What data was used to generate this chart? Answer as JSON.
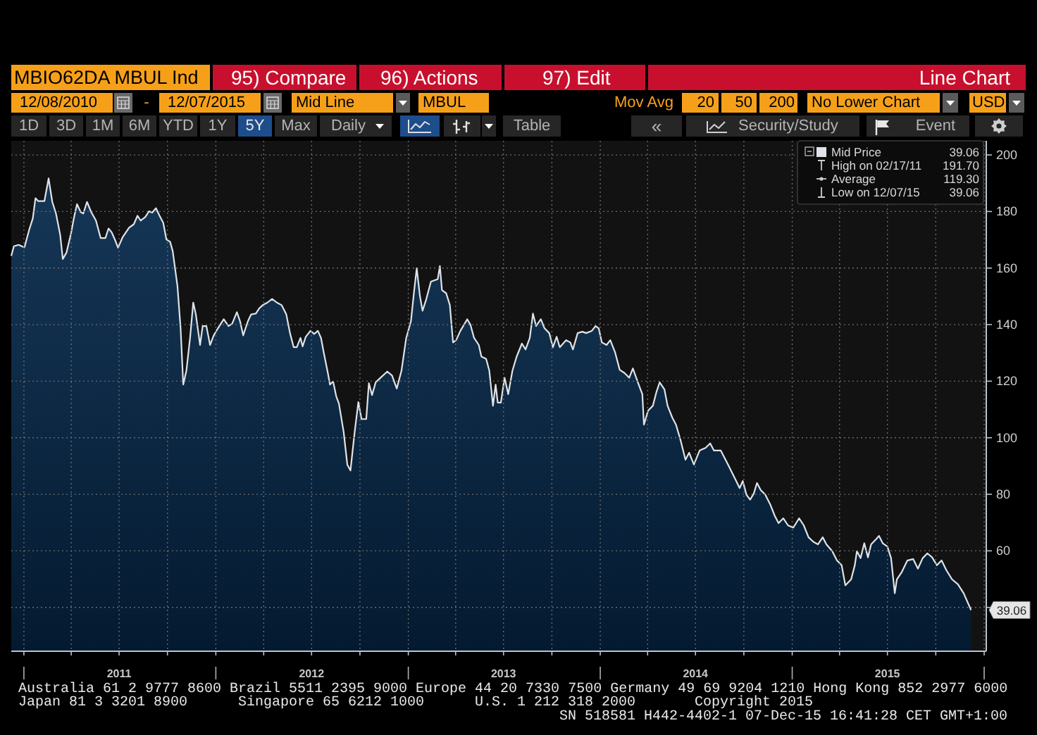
{
  "chart_data": {
    "type": "area",
    "x": [
      "2010-12-08",
      "2010-12-13",
      "2010-12-22",
      "2011-01-02",
      "2011-01-11",
      "2011-01-18",
      "2011-01-23",
      "2011-01-28",
      "2011-02-09",
      "2011-02-17",
      "2011-02-24",
      "2011-03-03",
      "2011-03-11",
      "2011-03-16",
      "2011-03-23",
      "2011-04-01",
      "2011-04-06",
      "2011-04-12",
      "2011-04-19",
      "2011-04-24",
      "2011-05-01",
      "2011-05-09",
      "2011-05-18",
      "2011-05-27",
      "2011-06-05",
      "2011-06-11",
      "2011-06-17",
      "2011-06-23",
      "2011-06-29",
      "2011-07-08",
      "2011-07-20",
      "2011-07-29",
      "2011-08-05",
      "2011-08-11",
      "2011-08-20",
      "2011-08-27",
      "2011-09-02",
      "2011-09-09",
      "2011-09-16",
      "2011-09-23",
      "2011-09-29",
      "2011-10-06",
      "2011-10-11",
      "2011-10-20",
      "2011-10-26",
      "2011-10-31",
      "2011-11-06",
      "2011-11-13",
      "2011-11-19",
      "2011-11-24",
      "2011-12-02",
      "2011-12-07",
      "2011-12-14",
      "2011-12-21",
      "2011-12-28",
      "2012-01-05",
      "2012-01-16",
      "2012-01-25",
      "2012-02-01",
      "2012-02-10",
      "2012-02-16",
      "2012-02-22",
      "2012-03-02",
      "2012-03-08",
      "2012-03-17",
      "2012-03-23",
      "2012-03-30",
      "2012-04-08",
      "2012-04-17",
      "2012-04-26",
      "2012-05-05",
      "2012-05-14",
      "2012-05-21",
      "2012-05-28",
      "2012-06-03",
      "2012-06-10",
      "2012-06-14",
      "2012-06-20",
      "2012-06-29",
      "2012-07-06",
      "2012-07-13",
      "2012-07-19",
      "2012-07-24",
      "2012-08-01",
      "2012-08-05",
      "2012-08-11",
      "2012-08-17",
      "2012-08-22",
      "2012-08-31",
      "2012-09-07",
      "2012-09-13",
      "2012-09-21",
      "2012-09-28",
      "2012-10-04",
      "2012-10-13",
      "2012-10-18",
      "2012-10-24",
      "2012-10-31",
      "2012-11-09",
      "2012-11-22",
      "2012-12-01",
      "2012-12-10",
      "2012-12-19",
      "2012-12-28",
      "2013-01-06",
      "2013-01-12",
      "2013-01-17",
      "2013-01-23",
      "2013-01-28",
      "2013-02-04",
      "2013-02-13",
      "2013-02-26",
      "2013-03-02",
      "2013-03-06",
      "2013-03-14",
      "2013-03-21",
      "2013-03-27",
      "2013-04-02",
      "2013-04-10",
      "2013-04-23",
      "2013-04-29",
      "2013-05-06",
      "2013-05-15",
      "2013-05-20",
      "2013-05-29",
      "2013-06-04",
      "2013-06-11",
      "2013-06-16",
      "2013-06-20",
      "2013-06-26",
      "2013-07-03",
      "2013-07-10",
      "2013-07-18",
      "2013-07-26",
      "2013-08-05",
      "2013-08-12",
      "2013-08-20",
      "2013-08-26",
      "2013-09-01",
      "2013-09-10",
      "2013-09-17",
      "2013-09-26",
      "2013-10-03",
      "2013-10-10",
      "2013-10-16",
      "2013-10-28",
      "2013-11-05",
      "2013-11-10",
      "2013-11-19",
      "2013-11-28",
      "2013-12-05",
      "2013-12-16",
      "2013-12-23",
      "2013-12-29",
      "2014-01-04",
      "2014-01-13",
      "2014-01-20",
      "2014-01-29",
      "2014-02-07",
      "2014-02-16",
      "2014-02-25",
      "2014-03-04",
      "2014-03-15",
      "2014-03-22",
      "2014-03-25",
      "2014-04-02",
      "2014-04-11",
      "2014-04-18",
      "2014-04-24",
      "2014-05-03",
      "2014-05-09",
      "2014-05-18",
      "2014-05-25",
      "2014-06-03",
      "2014-06-12",
      "2014-06-19",
      "2014-06-28",
      "2014-07-09",
      "2014-07-20",
      "2014-07-29",
      "2014-08-05",
      "2014-08-18",
      "2014-09-01",
      "2014-09-14",
      "2014-09-23",
      "2014-09-29",
      "2014-10-06",
      "2014-10-13",
      "2014-10-20",
      "2014-10-26",
      "2014-11-02",
      "2014-11-11",
      "2014-11-20",
      "2014-11-29",
      "2014-12-06",
      "2014-12-15",
      "2014-12-24",
      "2015-01-03",
      "2015-01-14",
      "2015-01-23",
      "2015-02-01",
      "2015-02-10",
      "2015-02-19",
      "2015-02-28",
      "2015-03-07",
      "2015-03-18",
      "2015-03-27",
      "2015-04-05",
      "2015-04-12",
      "2015-04-23",
      "2015-04-30",
      "2015-05-04",
      "2015-05-11",
      "2015-05-18",
      "2015-05-25",
      "2015-05-31",
      "2015-06-09",
      "2015-06-15",
      "2015-06-22",
      "2015-07-01",
      "2015-07-08",
      "2015-07-15",
      "2015-07-19",
      "2015-07-28",
      "2015-08-08",
      "2015-08-19",
      "2015-08-28",
      "2015-09-06",
      "2015-09-15",
      "2015-09-24",
      "2015-10-03",
      "2015-10-12",
      "2015-10-21",
      "2015-11-01",
      "2015-11-12",
      "2015-11-23",
      "2015-12-07"
    ],
    "series": [
      {
        "name": "Mid Price",
        "color": "#dfe3e8",
        "values": [
          164.3,
          167.7,
          168.2,
          167.3,
          173.5,
          177.6,
          184.7,
          183.7,
          183.7,
          191.7,
          183.4,
          179.3,
          171.8,
          163.2,
          165.5,
          172.6,
          177.6,
          182.6,
          179.8,
          179.3,
          183.4,
          179.8,
          176.8,
          170.6,
          170.6,
          174,
          172.6,
          170.1,
          167.2,
          171,
          174.3,
          175.5,
          178.5,
          176.8,
          178.1,
          180.1,
          179.6,
          181.2,
          178.5,
          176,
          170.1,
          169.3,
          166,
          153.6,
          138.7,
          118.8,
          123.7,
          135.3,
          147.8,
          143.6,
          132.8,
          139.5,
          139.5,
          132.8,
          136.2,
          138.7,
          141.9,
          139.5,
          140.3,
          144.4,
          141.2,
          136.2,
          141.2,
          143.6,
          143.9,
          145.6,
          146.9,
          147.8,
          149.1,
          147.8,
          146.9,
          143.6,
          137,
          132,
          132,
          135.3,
          132.3,
          135.7,
          137.8,
          136.7,
          137.8,
          135.3,
          130.3,
          122.9,
          118.8,
          119.9,
          114.6,
          112.1,
          102.1,
          90.5,
          88.4,
          102.1,
          112.6,
          106.6,
          106.6,
          119.3,
          115.1,
          119.6,
          121.2,
          123.4,
          122,
          117.4,
          123.7,
          135.3,
          141.2,
          151.9,
          159.9,
          150.2,
          144.9,
          148.9,
          155.2,
          156.1,
          160.7,
          152.2,
          151.1,
          146.9,
          133.7,
          134.5,
          137.8,
          141.9,
          140,
          135.3,
          132.8,
          128.7,
          127.9,
          123.7,
          111.3,
          118.8,
          112.4,
          112.4,
          121.2,
          115.4,
          123.7,
          128.7,
          133.3,
          131.2,
          135.3,
          143.9,
          139.5,
          141.9,
          138.7,
          137,
          132,
          135.7,
          132,
          134.5,
          133.7,
          131.2,
          137,
          137.5,
          137,
          137.8,
          139.5,
          138.7,
          133.7,
          132.8,
          134.5,
          130.3,
          124,
          122.9,
          121.2,
          124.5,
          118.8,
          115.4,
          104.6,
          109.6,
          111.3,
          116.3,
          119.6,
          117.1,
          111.3,
          107.1,
          104.6,
          98.9,
          92.2,
          94.7,
          90.5,
          95.5,
          96.4,
          98,
          95.5,
          95.5,
          90.5,
          85.6,
          82.2,
          84.7,
          79.8,
          78.1,
          80.3,
          84,
          81.5,
          79.8,
          76.5,
          72.3,
          69.8,
          71.5,
          69,
          68.2,
          71.5,
          69,
          64.8,
          63.2,
          62.3,
          64.8,
          62.3,
          59.9,
          56.6,
          54.9,
          47.8,
          49.9,
          54.9,
          59.9,
          57.4,
          62.7,
          57.7,
          62.3,
          64,
          65.3,
          62.7,
          61.5,
          57.4,
          45,
          49.9,
          52.4,
          56.6,
          57.1,
          53.7,
          57.4,
          59.1,
          57.7,
          54.9,
          56.6,
          53.2,
          49.9,
          48.2,
          45,
          39.06
        ]
      }
    ],
    "xlim": [
      "2010-12-08",
      "2016-01-05"
    ],
    "ylim": [
      24.5,
      205
    ],
    "xticks": [
      {
        "value": "2011-01-01",
        "label": null
      },
      {
        "value": "2011-04-01",
        "label": null
      },
      {
        "value": "2011-07-01",
        "label": "2011"
      },
      {
        "value": "2011-10-01",
        "label": null
      },
      {
        "value": "2012-01-01",
        "label": null
      },
      {
        "value": "2012-04-01",
        "label": null
      },
      {
        "value": "2012-07-01",
        "label": "2012"
      },
      {
        "value": "2012-10-01",
        "label": null
      },
      {
        "value": "2013-01-01",
        "label": null
      },
      {
        "value": "2013-04-01",
        "label": null
      },
      {
        "value": "2013-07-01",
        "label": "2013"
      },
      {
        "value": "2013-10-01",
        "label": null
      },
      {
        "value": "2014-01-01",
        "label": null
      },
      {
        "value": "2014-04-01",
        "label": null
      },
      {
        "value": "2014-07-01",
        "label": "2014"
      },
      {
        "value": "2014-10-01",
        "label": null
      },
      {
        "value": "2015-01-01",
        "label": null
      },
      {
        "value": "2015-04-01",
        "label": null
      },
      {
        "value": "2015-07-01",
        "label": "2015"
      },
      {
        "value": "2015-10-01",
        "label": null
      },
      {
        "value": "2016-01-01",
        "label": null
      }
    ],
    "yticks": [
      {
        "value": 40,
        "label": null
      },
      60,
      80,
      100,
      120,
      140,
      160,
      180,
      200
    ],
    "grid": true,
    "legend": "top right",
    "annotations": [
      "MBIO62DA MBUL Ind",
      "95) Compare",
      "96) Actions",
      "97) Edit",
      "Line Chart",
      "12/08/2010",
      "-",
      "12/07/2015",
      "Mid Line",
      "MBUL",
      "Mov Avg",
      "20",
      "50",
      "200",
      "No Lower Chart",
      "USD",
      "1D",
      "3D",
      "1M",
      "6M",
      "YTD",
      "1Y",
      "5Y",
      "Max",
      "Daily",
      "Table",
      "«",
      "Security/Study",
      "Event",
      "39.06",
      "High on 02/17/11",
      "191.70",
      "Average",
      "119.30",
      "Low on 12/07/15",
      "39.06",
      {
        "text": "39.06",
        "y": 39.06
      },
      "Australia 61 2 9777 8600 Brazil 5511 2395 9000 Europe 44 20 7330 7500 Germany 49 69 9204 1210 Hong Kong 852 2977 6000",
      "Japan 81 3 3201 8900",
      "Singapore 65 6212 1000",
      "U.S. 1 212 318 2000",
      "Copyright 2015",
      "SN 518581 H442-4402-1 07-Dec-15 16:41:28 CET  GMT+1:00"
    ]
  }
}
